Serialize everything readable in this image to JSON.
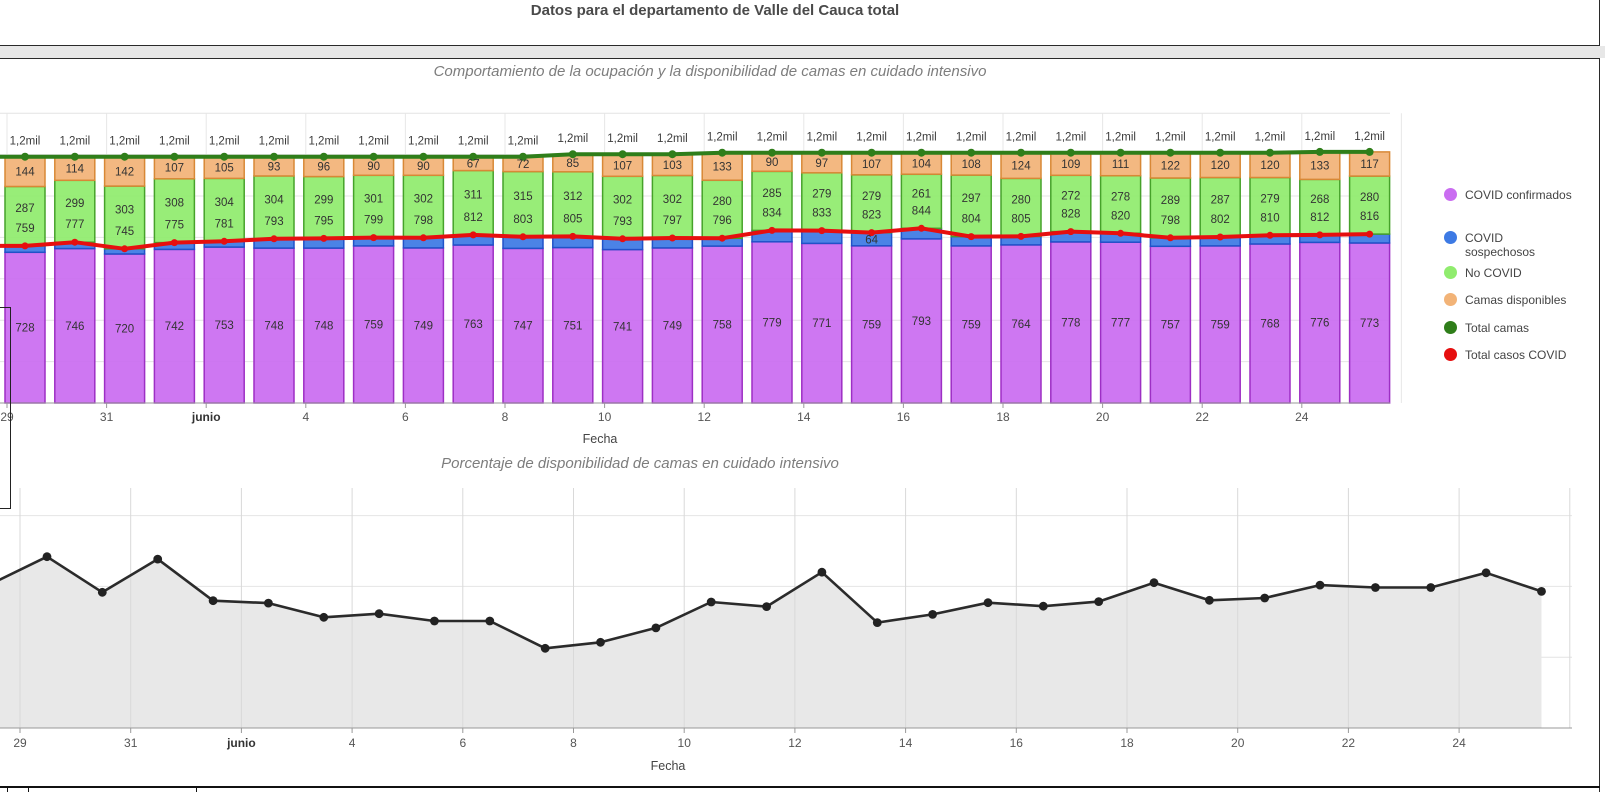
{
  "page": {
    "title": "Datos para el departamento de Valle del Cauca total"
  },
  "legend": {
    "items": [
      {
        "label": "COVID confirmados",
        "color": "#ca6df1"
      },
      {
        "label": "COVID sospechosos",
        "color": "#3d7ae4"
      },
      {
        "label": "No COVID",
        "color": "#90ec6e"
      },
      {
        "label": "Camas disponibles",
        "color": "#f2b377"
      },
      {
        "label": "Total camas",
        "color": "#2f7e1a"
      },
      {
        "label": "Total casos COVID",
        "color": "#e60f0f"
      }
    ]
  },
  "chart_data": [
    {
      "type": "bar",
      "stacked": true,
      "title": "Comportamiento de la ocupación y la disponibilidad de camas en cuidado intensivo",
      "xlabel": "Fecha",
      "x_tick_labels": [
        "29",
        "31",
        "junio",
        "4",
        "6",
        "8",
        "10",
        "12",
        "14",
        "16",
        "18",
        "20",
        "22",
        "24"
      ],
      "bar_total_label": "1,2mil",
      "ylim": [
        0,
        1400
      ],
      "legend_position": "right",
      "series": [
        {
          "name": "COVID confirmados",
          "type": "bar",
          "color": "#ca6df1",
          "border": "#9d2fc4",
          "values": [
            728,
            746,
            720,
            742,
            753,
            748,
            748,
            759,
            749,
            763,
            747,
            751,
            741,
            749,
            758,
            779,
            771,
            759,
            793,
            759,
            764,
            778,
            777,
            757,
            759,
            768,
            776,
            773
          ]
        },
        {
          "name": "COVID sospechosos",
          "type": "bar",
          "color": "#3d7ae4",
          "border": "#2052c8",
          "values": [
            31,
            31,
            25,
            33,
            28,
            45,
            47,
            40,
            49,
            49,
            56,
            54,
            52,
            48,
            38,
            55,
            62,
            64,
            51,
            45,
            41,
            50,
            43,
            41,
            43,
            42,
            36,
            43
          ],
          "labeled_indices": [
            17
          ]
        },
        {
          "name": "No COVID",
          "type": "bar",
          "color": "#90ec6e",
          "border": "#46a22a",
          "values": [
            287,
            299,
            303,
            308,
            304,
            304,
            299,
            301,
            302,
            311,
            315,
            312,
            302,
            302,
            280,
            285,
            279,
            279,
            261,
            297,
            280,
            272,
            278,
            289,
            287,
            279,
            268,
            280
          ]
        },
        {
          "name": "Camas disponibles",
          "type": "bar",
          "color": "#f2b377",
          "border": "#d88836",
          "values": [
            144,
            114,
            142,
            107,
            105,
            93,
            96,
            90,
            90,
            67,
            72,
            85,
            107,
            103,
            133,
            90,
            97,
            107,
            104,
            108,
            124,
            109,
            111,
            122,
            120,
            120,
            133,
            117
          ]
        },
        {
          "name": "Total camas",
          "type": "line",
          "color": "#2f7e1a",
          "values": [
            1190,
            1190,
            1190,
            1190,
            1190,
            1190,
            1190,
            1190,
            1190,
            1190,
            1190,
            1202,
            1202,
            1202,
            1209,
            1209,
            1209,
            1209,
            1209,
            1209,
            1209,
            1209,
            1209,
            1209,
            1209,
            1209,
            1213,
            1213
          ]
        },
        {
          "name": "Total casos COVID",
          "type": "line",
          "color": "#e60f0f",
          "values": [
            759,
            777,
            745,
            775,
            781,
            793,
            795,
            799,
            798,
            812,
            803,
            805,
            793,
            797,
            796,
            834,
            833,
            823,
            844,
            804,
            805,
            828,
            820,
            798,
            802,
            810,
            812,
            816
          ]
        }
      ]
    },
    {
      "type": "area",
      "title": "Porcentaje de disponibilidad de camas en cuidado intensivo",
      "xlabel": "Fecha",
      "x_tick_labels": [
        "29",
        "31",
        "junio",
        "4",
        "6",
        "8",
        "10",
        "12",
        "14",
        "16",
        "18",
        "20",
        "22",
        "24"
      ],
      "ylim": [
        0,
        15
      ],
      "line_color": "#2b2b2b",
      "fill_color": "#e8e8e8",
      "values": [
        12.1,
        9.58,
        11.93,
        8.99,
        8.82,
        7.82,
        8.07,
        7.56,
        7.56,
        5.63,
        6.05,
        7.07,
        8.9,
        8.57,
        11.0,
        7.44,
        8.02,
        8.85,
        8.6,
        8.93,
        10.26,
        9.02,
        9.18,
        10.09,
        9.92,
        9.92,
        10.96,
        9.65
      ]
    }
  ]
}
